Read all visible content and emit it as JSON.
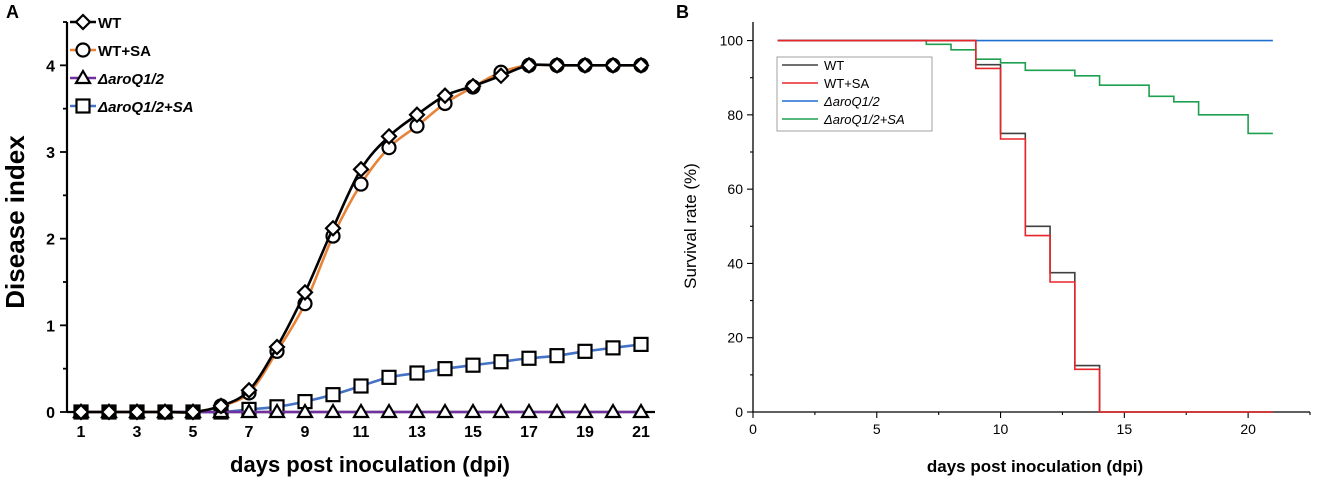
{
  "chart_data": [
    {
      "panel_label": "A",
      "type": "line",
      "xlabel": "days post inoculation (dpi)",
      "ylabel": "Disease index",
      "xlim": [
        0.5,
        21.5
      ],
      "ylim": [
        0,
        4.5
      ],
      "xticks": [
        "1",
        "3",
        "5",
        "7",
        "9",
        "11",
        "13",
        "15",
        "17",
        "19",
        "21"
      ],
      "yticks": [
        "0",
        "1",
        "2",
        "3",
        "4"
      ],
      "legend_position": "top-left",
      "x": [
        1,
        2,
        3,
        4,
        5,
        6,
        7,
        8,
        9,
        10,
        11,
        12,
        13,
        14,
        15,
        16,
        17,
        18,
        19,
        20,
        21
      ],
      "series": [
        {
          "name": "WT",
          "color": "#000000",
          "marker": "diamond",
          "values": [
            0,
            0,
            0,
            0,
            0,
            0.07,
            0.25,
            0.75,
            1.38,
            2.12,
            2.8,
            3.18,
            3.43,
            3.65,
            3.76,
            3.88,
            4,
            4,
            4,
            4,
            4
          ]
        },
        {
          "name": "WT+SA",
          "color": "#E8843A",
          "marker": "circle",
          "values": [
            0,
            0,
            0,
            0,
            0,
            0.07,
            0.22,
            0.7,
            1.25,
            2.03,
            2.63,
            3.05,
            3.3,
            3.56,
            3.75,
            3.92,
            4,
            4,
            4,
            4,
            4
          ]
        },
        {
          "name": "ΔaroQ1/2",
          "color": "#7030A0",
          "marker": "triangle",
          "values": [
            0,
            0,
            0,
            0,
            0,
            0,
            0,
            0,
            0,
            0,
            0,
            0,
            0,
            0,
            0,
            0,
            0,
            0,
            0,
            0,
            0
          ]
        },
        {
          "name": "ΔaroQ1/2+SA",
          "color": "#4472C4",
          "marker": "square",
          "values": [
            0,
            0,
            0,
            0,
            0,
            0,
            0.03,
            0.06,
            0.12,
            0.2,
            0.3,
            0.4,
            0.45,
            0.5,
            0.54,
            0.58,
            0.62,
            0.65,
            0.7,
            0.74,
            0.78
          ]
        }
      ]
    },
    {
      "panel_label": "B",
      "type": "line",
      "xlabel": "days post inoculation (dpi)",
      "ylabel": "Survival rate (%)",
      "xlim": [
        0,
        22.5
      ],
      "ylim": [
        0,
        105
      ],
      "xticks": [
        "0",
        "5",
        "10",
        "15",
        "20"
      ],
      "yticks": [
        "0",
        "20",
        "40",
        "60",
        "80",
        "100"
      ],
      "legend_position": "top-left",
      "series": [
        {
          "name": "WT",
          "color": "#404040",
          "x": [
            1,
            9,
            9,
            10,
            10,
            11,
            11,
            12,
            12,
            13,
            13,
            14,
            14,
            21
          ],
          "values": [
            100,
            100,
            93.5,
            93.5,
            75,
            75,
            50,
            50,
            37.5,
            37.5,
            12.5,
            12.5,
            0,
            0
          ]
        },
        {
          "name": "WT+SA",
          "color": "#E8262A",
          "x": [
            1,
            9,
            9,
            10,
            10,
            11,
            11,
            12,
            12,
            13,
            13,
            14,
            14,
            21
          ],
          "values": [
            100,
            100,
            92.5,
            92.5,
            73.5,
            73.5,
            47.5,
            47.5,
            35,
            35,
            11.5,
            11.5,
            0,
            0
          ]
        },
        {
          "name": "ΔaroQ1/2",
          "color": "#1F6FD0",
          "x": [
            1,
            21
          ],
          "values": [
            100,
            100
          ]
        },
        {
          "name": "ΔaroQ1/2+SA",
          "color": "#1FA050",
          "x": [
            1,
            7,
            7,
            8,
            8,
            9,
            9,
            10,
            10,
            11,
            11,
            13,
            13,
            14,
            14,
            16,
            16,
            17,
            17,
            18,
            18,
            20,
            20,
            21
          ],
          "values": [
            100,
            100,
            99,
            99,
            97.5,
            97.5,
            95,
            95,
            94,
            94,
            92,
            92,
            90.5,
            90.5,
            88,
            88,
            85,
            85,
            83.5,
            83.5,
            80,
            80,
            75,
            75
          ]
        }
      ]
    }
  ]
}
